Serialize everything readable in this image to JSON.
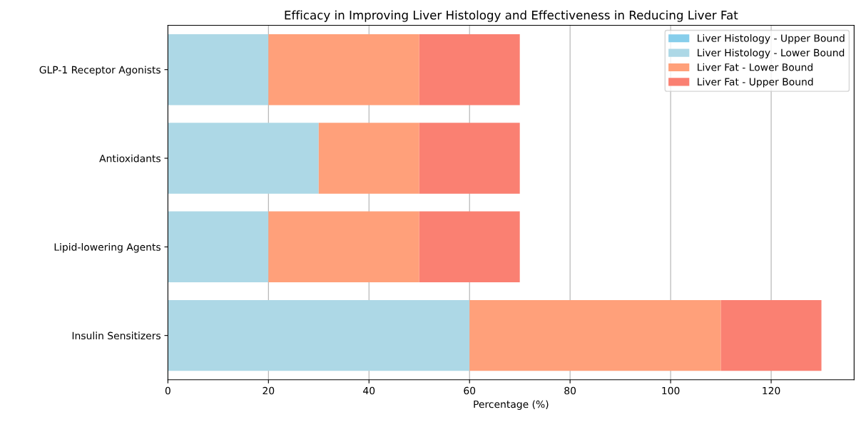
{
  "chart_data": {
    "type": "bar",
    "orientation": "horizontal",
    "stacked": true,
    "title": "Efficacy in Improving Liver Histology and Effectiveness in Reducing Liver Fat",
    "xlabel": "Percentage (%)",
    "categories": [
      "GLP-1 Receptor Agonists",
      "Antioxidants",
      "Lipid-lowering Agents",
      "Insulin Sensitizers"
    ],
    "series": [
      {
        "name": "Liver Histology - Upper Bound",
        "color": "#87ceeb",
        "values": [
          null,
          null,
          null,
          null
        ]
      },
      {
        "name": "Liver Histology - Lower Bound",
        "color": "#add8e6",
        "values": [
          20,
          30,
          20,
          60
        ]
      },
      {
        "name": "Liver Fat - Lower Bound",
        "color": "#ffa07a",
        "values": [
          30,
          20,
          30,
          50
        ]
      },
      {
        "name": "Liver Fat - Upper Bound",
        "color": "#fa8072",
        "values": [
          20,
          20,
          20,
          20
        ]
      }
    ],
    "xlim": [
      0,
      136.5
    ],
    "xticks": [
      0,
      20,
      40,
      60,
      80,
      100,
      120
    ],
    "grid": "x",
    "legend": "top right"
  }
}
